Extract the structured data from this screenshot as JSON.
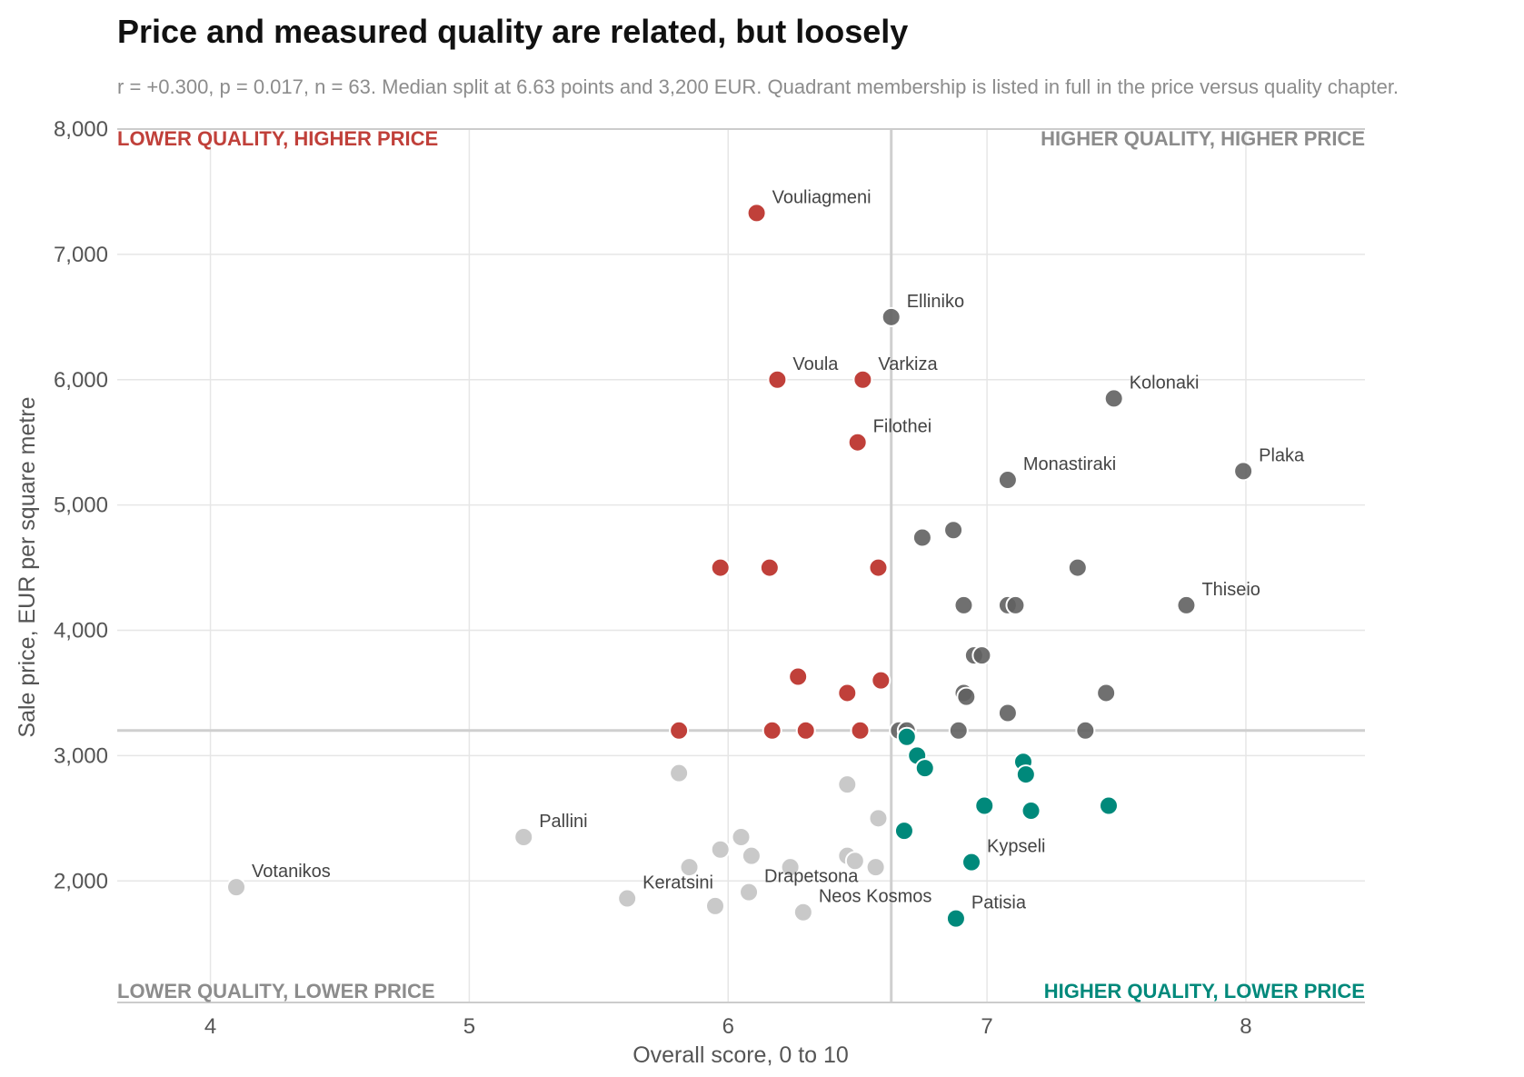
{
  "colors": {
    "lower_quality_higher_price": "#c0403a",
    "higher_quality_higher_price": "#616161",
    "higher_quality_lower_price": "#00897b",
    "lower_quality_lower_price": "#c9c9c9",
    "label_grey": "#8c8c8c"
  },
  "chart_data": {
    "type": "scatter",
    "title": "Price and measured quality are related, but loosely",
    "subtitle": "r = +0.300, p = 0.017, n = 63. Median split at 6.63 points and 3,200 EUR. Quadrant membership is listed in full in the price versus quality chapter.",
    "xlabel": "Overall score, 0 to 10",
    "ylabel": "Sale price, EUR per square metre",
    "xlim": [
      3.64,
      8.46
    ],
    "ylim": [
      1030,
      8000
    ],
    "x_ticks": [
      4,
      5,
      6,
      7,
      8
    ],
    "x_tick_labels": [
      "4",
      "5",
      "6",
      "7",
      "8"
    ],
    "y_ticks": [
      2000,
      3000,
      4000,
      5000,
      6000,
      7000,
      8000
    ],
    "y_tick_labels": [
      "2,000",
      "3,000",
      "4,000",
      "5,000",
      "6,000",
      "7,000",
      "8,000"
    ],
    "grid": true,
    "median_x": 6.63,
    "median_y": 3200,
    "quadrant_labels": {
      "top_left": "LOWER QUALITY, HIGHER PRICE",
      "top_right": "HIGHER QUALITY, HIGHER PRICE",
      "bottom_left": "LOWER QUALITY, LOWER PRICE",
      "bottom_right": "HIGHER QUALITY, LOWER PRICE"
    },
    "points": [
      {
        "x": 6.11,
        "y": 7330,
        "q": "lqhp",
        "label": "Vouliagmeni"
      },
      {
        "x": 6.19,
        "y": 6000,
        "q": "lqhp",
        "label": "Voula"
      },
      {
        "x": 6.52,
        "y": 6000,
        "q": "lqhp",
        "label": "Varkiza"
      },
      {
        "x": 6.5,
        "y": 5500,
        "q": "lqhp",
        "label": "Filothei"
      },
      {
        "x": 5.97,
        "y": 4500,
        "q": "lqhp"
      },
      {
        "x": 6.16,
        "y": 4500,
        "q": "lqhp"
      },
      {
        "x": 6.58,
        "y": 4500,
        "q": "lqhp"
      },
      {
        "x": 6.27,
        "y": 3630,
        "q": "lqhp"
      },
      {
        "x": 6.59,
        "y": 3600,
        "q": "lqhp"
      },
      {
        "x": 6.46,
        "y": 3500,
        "q": "lqhp"
      },
      {
        "x": 5.81,
        "y": 3200,
        "q": "lqhp"
      },
      {
        "x": 6.17,
        "y": 3200,
        "q": "lqhp"
      },
      {
        "x": 6.3,
        "y": 3200,
        "q": "lqhp"
      },
      {
        "x": 6.51,
        "y": 3200,
        "q": "lqhp"
      },
      {
        "x": 6.63,
        "y": 6500,
        "q": "hqhp",
        "label": "Elliniko"
      },
      {
        "x": 7.49,
        "y": 5850,
        "q": "hqhp",
        "label": "Kolonaki"
      },
      {
        "x": 7.99,
        "y": 5270,
        "q": "hqhp",
        "label": "Plaka"
      },
      {
        "x": 7.08,
        "y": 5200,
        "q": "hqhp",
        "label": "Monastiraki"
      },
      {
        "x": 6.87,
        "y": 4800,
        "q": "hqhp"
      },
      {
        "x": 6.75,
        "y": 4740,
        "q": "hqhp"
      },
      {
        "x": 7.35,
        "y": 4500,
        "q": "hqhp"
      },
      {
        "x": 6.91,
        "y": 4200,
        "q": "hqhp"
      },
      {
        "x": 7.08,
        "y": 4200,
        "q": "hqhp"
      },
      {
        "x": 7.11,
        "y": 4200,
        "q": "hqhp"
      },
      {
        "x": 7.77,
        "y": 4200,
        "q": "hqhp",
        "label": "Thiseio"
      },
      {
        "x": 6.95,
        "y": 3800,
        "q": "hqhp"
      },
      {
        "x": 6.98,
        "y": 3800,
        "q": "hqhp"
      },
      {
        "x": 6.91,
        "y": 3500,
        "q": "hqhp"
      },
      {
        "x": 6.92,
        "y": 3470,
        "q": "hqhp"
      },
      {
        "x": 7.46,
        "y": 3500,
        "q": "hqhp"
      },
      {
        "x": 7.08,
        "y": 3340,
        "q": "hqhp"
      },
      {
        "x": 6.66,
        "y": 3200,
        "q": "hqhp"
      },
      {
        "x": 6.69,
        "y": 3200,
        "q": "hqhp"
      },
      {
        "x": 6.89,
        "y": 3200,
        "q": "hqhp"
      },
      {
        "x": 7.38,
        "y": 3200,
        "q": "hqhp"
      },
      {
        "x": 6.69,
        "y": 3150,
        "q": "hqlp"
      },
      {
        "x": 6.73,
        "y": 3000,
        "q": "hqlp"
      },
      {
        "x": 6.76,
        "y": 2900,
        "q": "hqlp"
      },
      {
        "x": 7.14,
        "y": 2950,
        "q": "hqlp"
      },
      {
        "x": 7.15,
        "y": 2850,
        "q": "hqlp"
      },
      {
        "x": 6.99,
        "y": 2600,
        "q": "hqlp"
      },
      {
        "x": 7.17,
        "y": 2560,
        "q": "hqlp"
      },
      {
        "x": 7.47,
        "y": 2600,
        "q": "hqlp"
      },
      {
        "x": 6.68,
        "y": 2400,
        "q": "hqlp"
      },
      {
        "x": 6.94,
        "y": 2150,
        "q": "hqlp",
        "label": "Kypseli"
      },
      {
        "x": 6.88,
        "y": 1700,
        "q": "hqlp",
        "label": "Patisia"
      },
      {
        "x": 4.1,
        "y": 1950,
        "q": "lqlp",
        "label": "Votanikos"
      },
      {
        "x": 5.21,
        "y": 2350,
        "q": "lqlp",
        "label": "Pallini"
      },
      {
        "x": 5.81,
        "y": 2860,
        "q": "lqlp"
      },
      {
        "x": 6.46,
        "y": 2770,
        "q": "lqlp"
      },
      {
        "x": 6.58,
        "y": 2500,
        "q": "lqlp"
      },
      {
        "x": 6.05,
        "y": 2350,
        "q": "lqlp"
      },
      {
        "x": 5.97,
        "y": 2250,
        "q": "lqlp"
      },
      {
        "x": 6.09,
        "y": 2200,
        "q": "lqlp"
      },
      {
        "x": 6.46,
        "y": 2200,
        "q": "lqlp"
      },
      {
        "x": 6.49,
        "y": 2160,
        "q": "lqlp"
      },
      {
        "x": 5.85,
        "y": 2110,
        "q": "lqlp"
      },
      {
        "x": 6.24,
        "y": 2110,
        "q": "lqlp"
      },
      {
        "x": 6.57,
        "y": 2110,
        "q": "lqlp"
      },
      {
        "x": 5.61,
        "y": 1860,
        "q": "lqlp",
        "label": "Keratsini"
      },
      {
        "x": 5.95,
        "y": 1800,
        "q": "lqlp"
      },
      {
        "x": 6.08,
        "y": 1910,
        "q": "lqlp",
        "label": "Drapetsona"
      },
      {
        "x": 6.29,
        "y": 1750,
        "q": "lqlp",
        "label": "Neos Kosmos"
      }
    ]
  }
}
